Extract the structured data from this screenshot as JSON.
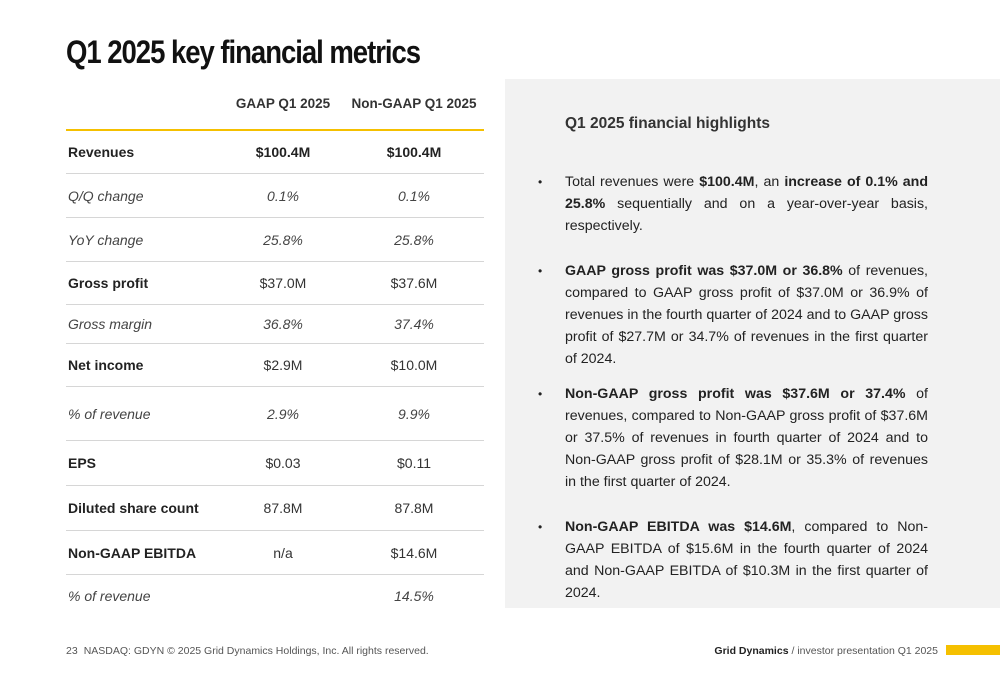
{
  "title": "Q1 2025 key financial metrics",
  "colors": {
    "accent": "#f5c000",
    "panel_bg": "#f2f2f2"
  },
  "table": {
    "headers": [
      "",
      "GAAP Q1 2025",
      "Non-GAAP Q1 2025"
    ],
    "rows": [
      {
        "label": "Revenues",
        "gaap": "$100.4M",
        "non_gaap": "$100.4M",
        "style": "bold-all"
      },
      {
        "label": "Q/Q change",
        "gaap": "0.1%",
        "non_gaap": "0.1%",
        "style": "italic"
      },
      {
        "label": "YoY change",
        "gaap": "25.8%",
        "non_gaap": "25.8%",
        "style": "italic"
      },
      {
        "label": "Gross profit",
        "gaap": "$37.0M",
        "non_gaap": "$37.6M",
        "style": "bold"
      },
      {
        "label": "Gross margin",
        "gaap": "36.8%",
        "non_gaap": "37.4%",
        "style": "italic"
      },
      {
        "label": "Net income",
        "gaap": "$2.9M",
        "non_gaap": "$10.0M",
        "style": "bold"
      },
      {
        "label": "% of revenue",
        "gaap": "2.9%",
        "non_gaap": "9.9%",
        "style": "italic"
      },
      {
        "label": "EPS",
        "gaap": "$0.03",
        "non_gaap": "$0.11",
        "style": "bold"
      },
      {
        "label": "Diluted share count",
        "gaap": "87.8M",
        "non_gaap": "87.8M",
        "style": "bold"
      },
      {
        "label": "Non-GAAP EBITDA",
        "gaap": "n/a",
        "non_gaap": "$14.6M",
        "style": "bold"
      },
      {
        "label": "% of revenue",
        "gaap": "",
        "non_gaap": "14.5%",
        "style": "italic"
      }
    ]
  },
  "highlights": {
    "title": "Q1 2025 financial highlights",
    "bullets": [
      {
        "parts": [
          {
            "text": "Total revenues were ",
            "bold": false
          },
          {
            "text": "$100.4M",
            "bold": true
          },
          {
            "text": ", an ",
            "bold": false
          },
          {
            "text": "increase of 0.1% and 25.8%",
            "bold": true
          },
          {
            "text": " sequentially and on a year-over-year basis, respectively.",
            "bold": false
          }
        ]
      },
      {
        "parts": [
          {
            "text": "GAAP gross profit was $37.0M or 36.8%",
            "bold": true
          },
          {
            "text": " of revenues, compared to GAAP gross profit of $37.0M or 36.9% of revenues in the fourth quarter of 2024 and to GAAP gross profit of $27.7M or 34.7% of revenues in the first quarter of 2024.",
            "bold": false
          }
        ]
      },
      {
        "parts": [
          {
            "text": "Non-GAAP gross profit was $37.6M or 37.4%",
            "bold": true
          },
          {
            "text": " of revenues, compared to Non-GAAP gross profit of $37.6M or 37.5% of revenues in fourth quarter of 2024 and to Non-GAAP gross profit of $28.1M or 35.3% of revenues in the first quarter of 2024.",
            "bold": false
          }
        ]
      },
      {
        "parts": [
          {
            "text": "Non-GAAP EBITDA was $14.6M",
            "bold": true
          },
          {
            "text": ", compared to Non-GAAP EBITDA of $15.6M in the fourth quarter of 2024 and Non-GAAP EBITDA of $10.3M in the first quarter of 2024.",
            "bold": false
          }
        ]
      }
    ]
  },
  "footer": {
    "page_number": "23",
    "legal": "NASDAQ: GDYN © 2025 Grid Dynamics Holdings, Inc. All rights reserved.",
    "brand": "Grid Dynamics",
    "separator": " / ",
    "subtitle": "investor presentation Q1 2025"
  }
}
